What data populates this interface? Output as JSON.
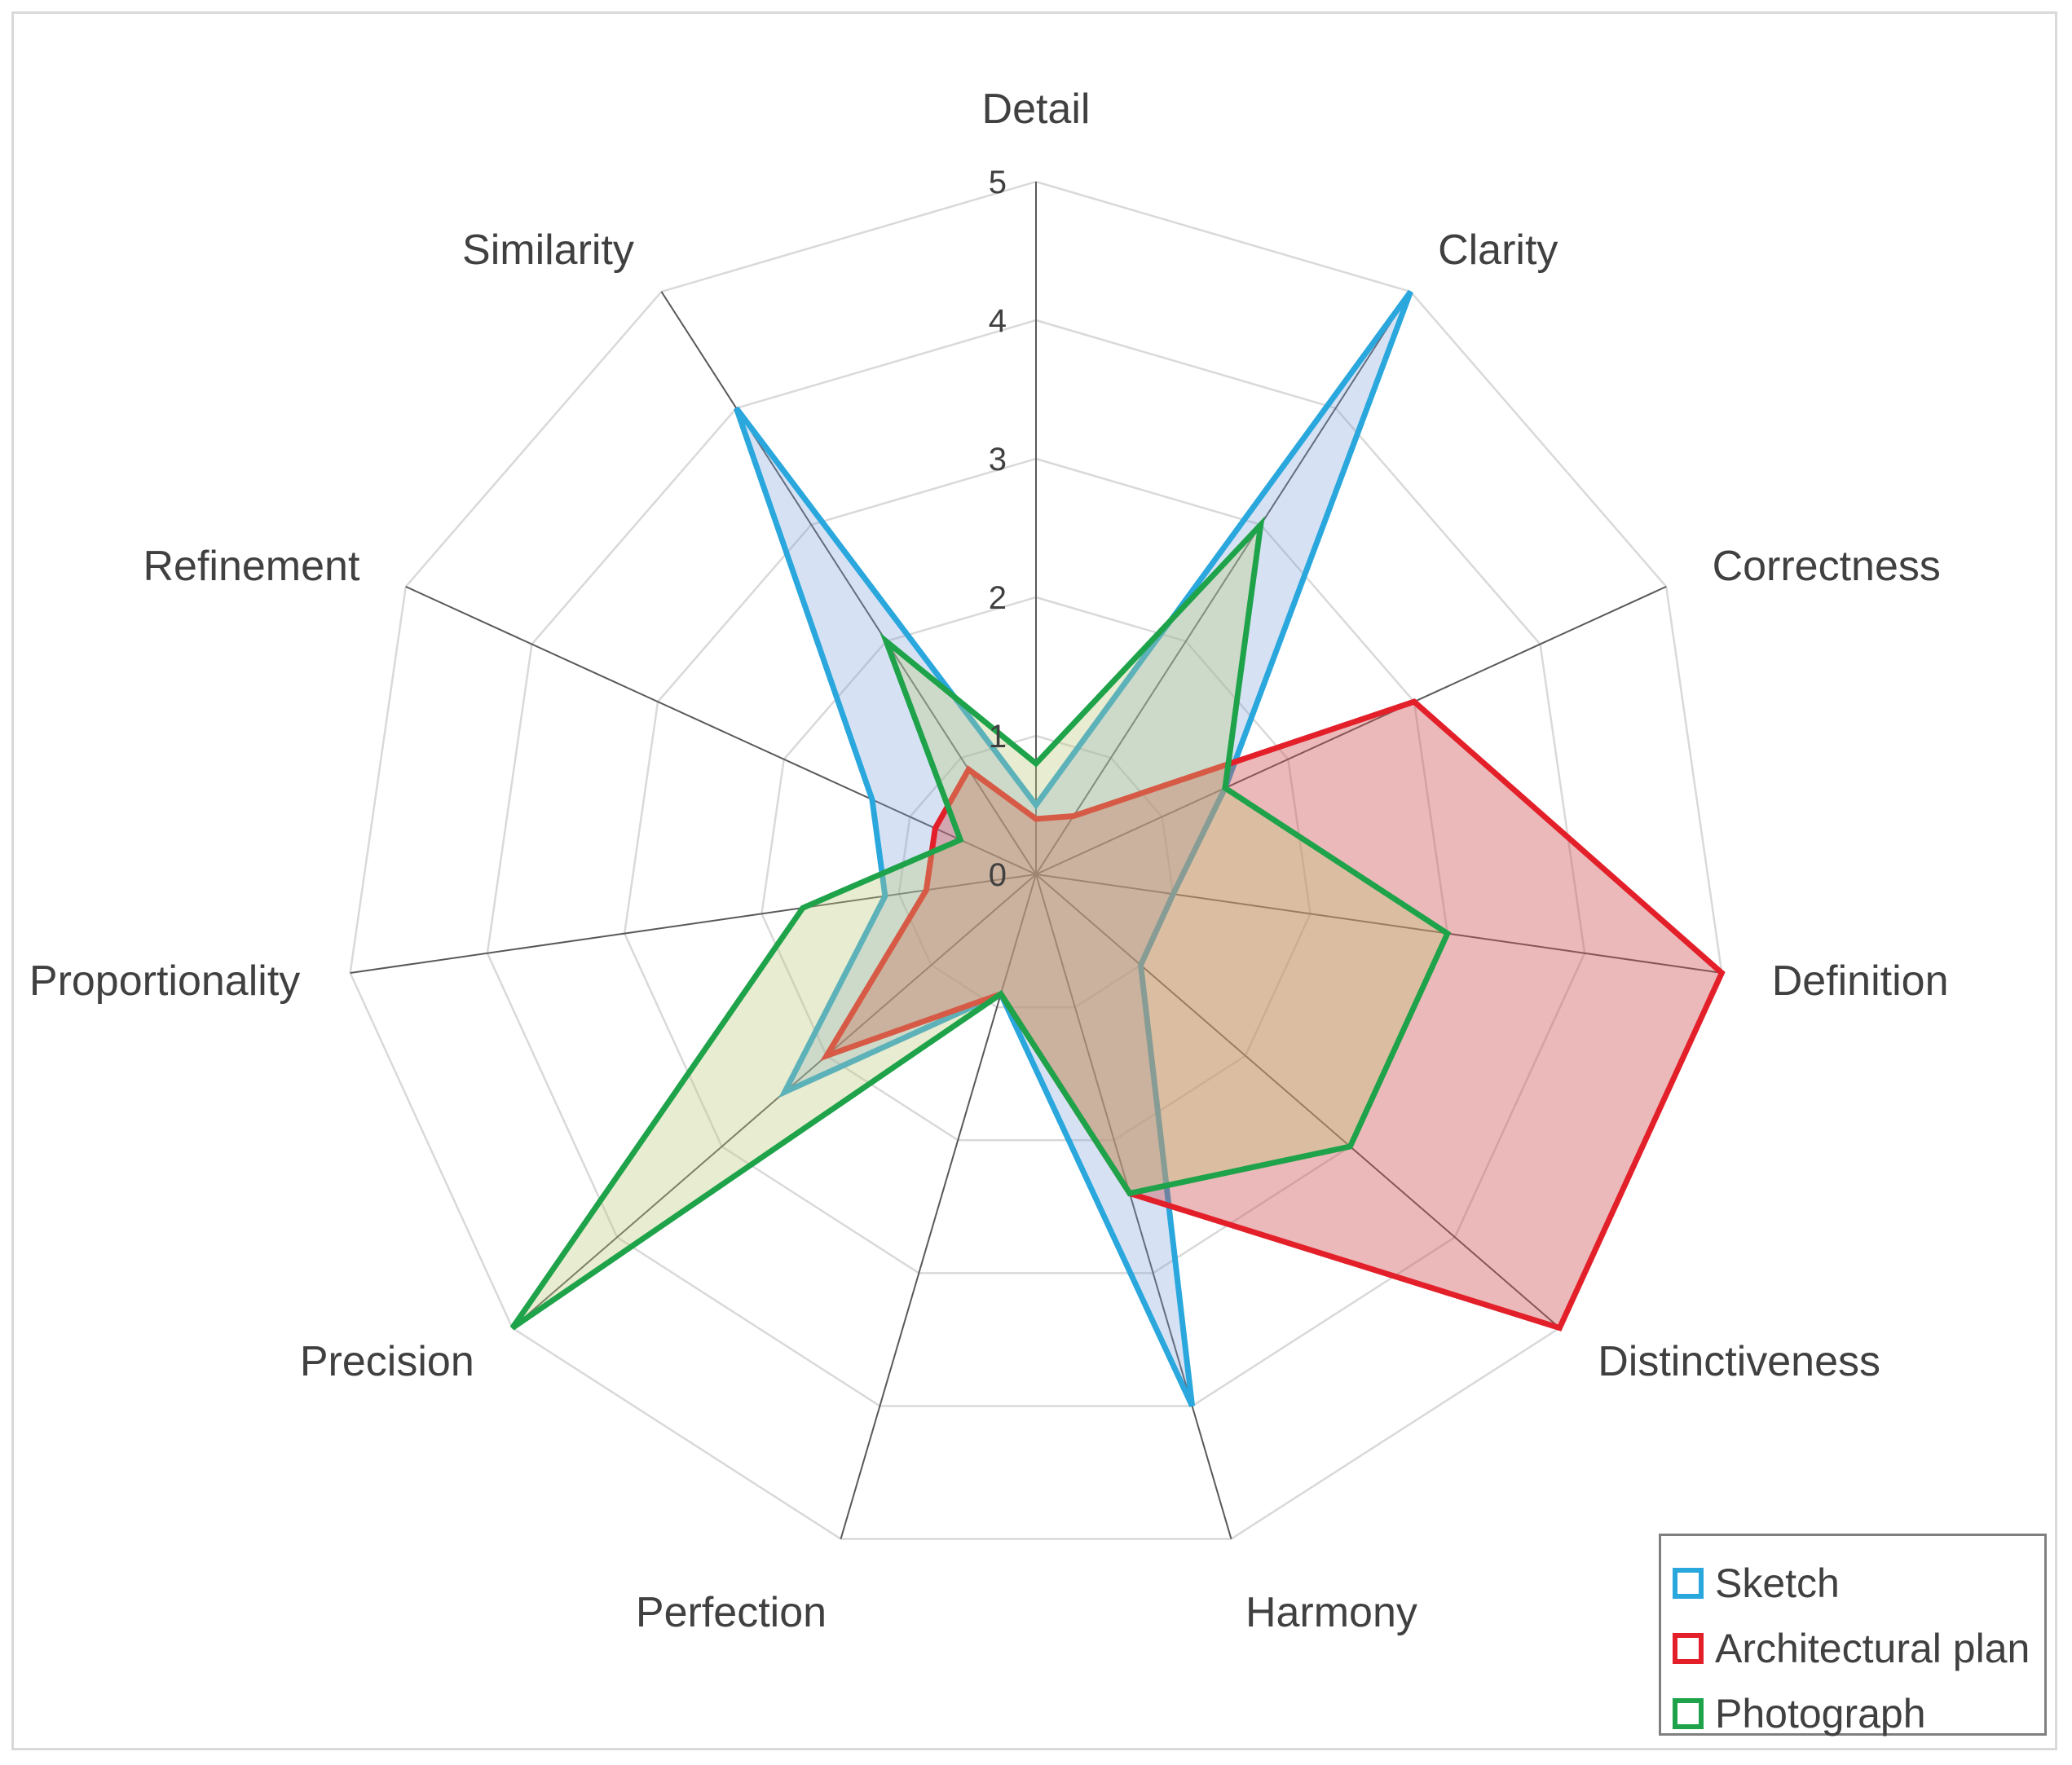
{
  "chart_data": {
    "type": "radar",
    "title": "",
    "axes": [
      "Detail",
      "Clarity",
      "Correctness",
      "Definition",
      "Distinctiveness",
      "Harmony",
      "Perfection",
      "Precision",
      "Proportionality",
      "Refinement",
      "Similarity"
    ],
    "rlim": [
      0,
      5
    ],
    "ticks": [
      "0",
      "1",
      "2",
      "3",
      "4",
      "5"
    ],
    "series": [
      {
        "name": "Sketch",
        "color": "#2aa7dc",
        "fill": "rgba(120,160,220,0.30)",
        "values": [
          0.5,
          5,
          1.5,
          1.0,
          1.0,
          4.0,
          0.9,
          2.4,
          1.1,
          1.3,
          4.0
        ]
      },
      {
        "name": "Architectural plan",
        "color": "#e3202a",
        "fill": "rgba(205,80,80,0.40)",
        "values": [
          0.4,
          0.5,
          3.0,
          5.0,
          5.0,
          2.4,
          0.9,
          2.0,
          0.8,
          0.8,
          0.9
        ]
      },
      {
        "name": "Photograph",
        "color": "#1fa34a",
        "fill": "rgba(190,200,120,0.35)",
        "values": [
          0.8,
          3.0,
          1.5,
          3.0,
          3.0,
          2.4,
          0.9,
          5.0,
          1.7,
          0.6,
          2.0
        ]
      }
    ],
    "legend_position": "bottom-right"
  }
}
